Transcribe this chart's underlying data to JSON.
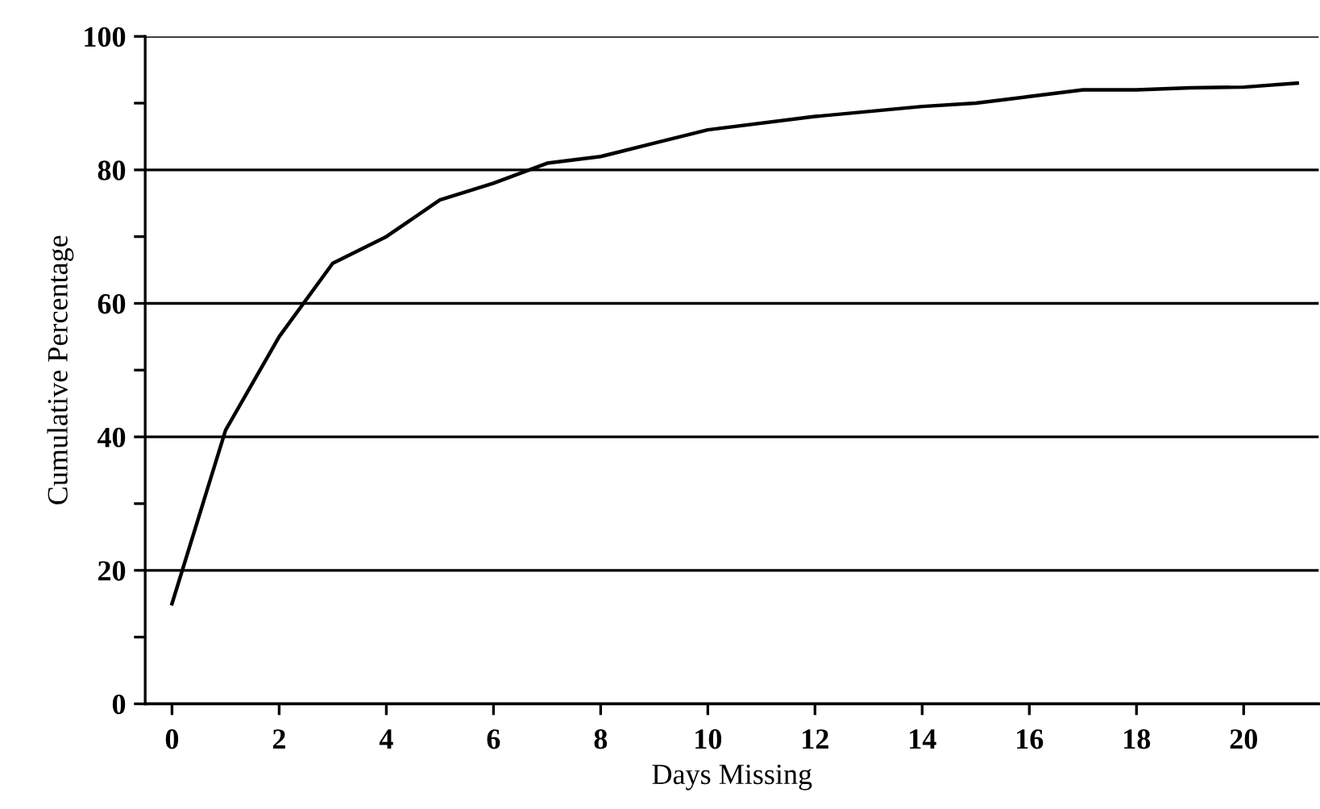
{
  "chart_data": {
    "type": "line",
    "xlabel": "Days Missing",
    "ylabel": "Cumulative Percentage",
    "x": [
      0,
      1,
      2,
      3,
      4,
      5,
      6,
      7,
      8,
      9,
      10,
      12,
      14,
      15,
      16,
      17,
      18,
      19,
      20,
      21
    ],
    "series": [
      {
        "color": "#000000",
        "values": [
          15,
          41,
          55,
          66,
          70,
          75.5,
          78,
          81,
          82,
          84,
          86,
          88,
          89.5,
          90,
          91,
          92,
          92,
          92.3,
          92.4,
          93
        ]
      }
    ],
    "xlim": [
      -0.5,
      21.4
    ],
    "ylim": [
      0,
      100
    ],
    "xticks": [
      0,
      2,
      4,
      6,
      8,
      10,
      12,
      14,
      16,
      18,
      20
    ],
    "yticks": [
      0,
      20,
      40,
      60,
      80,
      100,
      {
        "value": 10,
        "label": null
      },
      {
        "value": 30,
        "label": null
      },
      {
        "value": 50,
        "label": null
      },
      {
        "value": 70,
        "label": null
      },
      {
        "value": 90,
        "label": null
      }
    ],
    "grid": "y",
    "marker": "none",
    "line_style": "solid"
  }
}
